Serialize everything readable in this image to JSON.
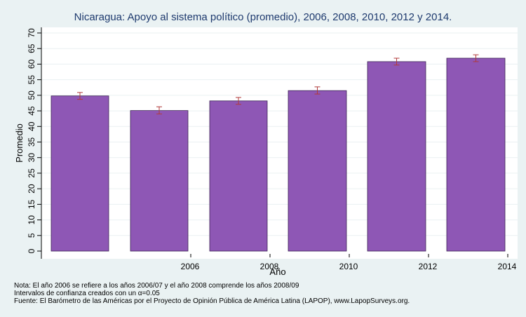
{
  "chart_data": {
    "type": "bar",
    "title": "Nicaragua: Apoyo al sistema político (promedio), 2006, 2008, 2010, 2012 y 2014.",
    "xlabel": "Año",
    "ylabel": "Promedio",
    "ylim": [
      0,
      70
    ],
    "yticks": [
      "0",
      "5",
      "10",
      "15",
      "20",
      "25",
      "30",
      "35",
      "40",
      "45",
      "50",
      "55",
      "60",
      "65",
      "70"
    ],
    "grid": true,
    "categories": [
      "",
      "2006",
      "2008",
      "2010",
      "2012",
      "2014"
    ],
    "values": [
      49.8,
      45.1,
      48.2,
      51.5,
      60.8,
      61.9
    ],
    "ci_low": [
      48.7,
      44.0,
      47.1,
      50.4,
      59.7,
      60.8
    ],
    "ci_high": [
      50.9,
      46.3,
      49.3,
      52.7,
      61.9,
      63.0
    ],
    "bar_color": "#8e57b5",
    "errorbar_color": "#b03a3a"
  },
  "notes": [
    "Nota: El año 2006 se refiere a los años 2006/07 y el año 2008 comprende los años 2008/09",
    "Intervalos de confianza creados con un α=0.05",
    "Fuente: El Barómetro de las Américas por el Proyecto de Opinión Pública de América Latina (LAPOP), www.LapopSurveys.org."
  ]
}
